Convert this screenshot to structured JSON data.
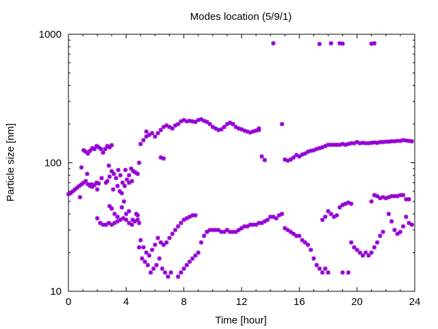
{
  "chart_data": {
    "type": "scatter",
    "title": "Modes location (5/9/1)",
    "xlabel": "Time [hour]",
    "ylabel": "Particle size [nm]",
    "xlim": [
      0,
      24
    ],
    "ylim": [
      10,
      1000
    ],
    "yscale": "log",
    "grid": false,
    "legend": "none",
    "marker": "asterisk",
    "color": "#9400d3",
    "xticks": [
      0,
      4,
      8,
      12,
      16,
      20,
      24
    ],
    "xtick_labels": [
      "0",
      "4",
      "8",
      "12",
      "16",
      "20",
      "24"
    ],
    "yticks": [
      10,
      100,
      1000
    ],
    "ytick_labels": [
      "10",
      "100",
      "1000"
    ],
    "series": [
      {
        "values": [
          [
            0.0,
            57
          ],
          [
            0.15,
            58
          ],
          [
            0.3,
            60
          ],
          [
            0.45,
            62
          ],
          [
            0.6,
            64
          ],
          [
            0.75,
            66
          ],
          [
            0.9,
            68
          ],
          [
            1.05,
            70
          ],
          [
            1.2,
            72
          ],
          [
            1.35,
            68
          ],
          [
            1.5,
            66
          ],
          [
            1.65,
            65
          ],
          [
            1.8,
            67
          ],
          [
            1.95,
            70
          ],
          [
            2.1,
            69
          ],
          [
            1.05,
            125
          ],
          [
            1.2,
            122
          ],
          [
            1.35,
            118
          ],
          [
            1.5,
            124
          ],
          [
            1.65,
            130
          ],
          [
            1.8,
            128
          ],
          [
            1.95,
            135
          ],
          [
            2.1,
            132
          ],
          [
            2.25,
            128
          ],
          [
            2.4,
            120
          ],
          [
            2.55,
            128
          ],
          [
            2.7,
            135
          ],
          [
            2.85,
            132
          ],
          [
            3.0,
            137
          ],
          [
            0.9,
            92
          ],
          [
            0.8,
            54
          ],
          [
            1.3,
            82
          ],
          [
            1.6,
            68
          ],
          [
            2.0,
            62
          ],
          [
            2.3,
            76
          ],
          [
            2.6,
            70
          ],
          [
            2.7,
            72
          ],
          [
            2.85,
            78
          ],
          [
            3.0,
            86
          ],
          [
            3.15,
            82
          ],
          [
            3.3,
            76
          ],
          [
            3.45,
            88
          ],
          [
            3.6,
            80
          ],
          [
            3.75,
            70
          ],
          [
            3.9,
            66
          ],
          [
            4.05,
            74
          ],
          [
            4.2,
            80
          ],
          [
            4.35,
            90
          ],
          [
            4.5,
            86
          ],
          [
            4.65,
            84
          ],
          [
            4.8,
            82
          ],
          [
            2.8,
            95
          ],
          [
            3.1,
            62
          ],
          [
            3.4,
            66
          ],
          [
            3.55,
            60
          ],
          [
            3.7,
            58
          ],
          [
            3.95,
            88
          ],
          [
            4.2,
            70
          ],
          [
            4.4,
            72
          ],
          [
            2.0,
            37
          ],
          [
            2.2,
            34
          ],
          [
            2.4,
            33
          ],
          [
            2.6,
            33
          ],
          [
            2.8,
            34
          ],
          [
            3.0,
            33
          ],
          [
            3.2,
            34
          ],
          [
            3.4,
            35
          ],
          [
            3.6,
            36
          ],
          [
            3.8,
            37
          ],
          [
            4.0,
            36
          ],
          [
            4.2,
            34
          ],
          [
            4.4,
            33
          ],
          [
            4.6,
            35
          ],
          [
            4.8,
            36
          ],
          [
            4.9,
            34
          ],
          [
            2.85,
            46
          ],
          [
            3.0,
            44
          ],
          [
            3.2,
            40
          ],
          [
            3.4,
            38
          ],
          [
            3.7,
            45
          ],
          [
            3.85,
            50
          ],
          [
            4.0,
            40
          ],
          [
            4.2,
            42
          ],
          [
            4.45,
            36
          ],
          [
            4.7,
            40
          ],
          [
            4.8,
            39
          ],
          [
            4.9,
            100
          ],
          [
            5.0,
            140
          ],
          [
            5.2,
            150
          ],
          [
            5.4,
            160
          ],
          [
            5.6,
            165
          ],
          [
            5.8,
            170
          ],
          [
            6.0,
            160
          ],
          [
            6.2,
            170
          ],
          [
            6.4,
            180
          ],
          [
            6.6,
            190
          ],
          [
            6.8,
            195
          ],
          [
            7.0,
            190
          ],
          [
            7.2,
            185
          ],
          [
            7.4,
            195
          ],
          [
            7.6,
            200
          ],
          [
            7.8,
            210
          ],
          [
            8.0,
            215
          ],
          [
            8.2,
            210
          ],
          [
            8.4,
            212
          ],
          [
            8.6,
            210
          ],
          [
            8.8,
            208
          ],
          [
            9.0,
            215
          ],
          [
            9.2,
            218
          ],
          [
            9.4,
            212
          ],
          [
            9.6,
            208
          ],
          [
            9.8,
            200
          ],
          [
            10.0,
            190
          ],
          [
            10.2,
            185
          ],
          [
            10.4,
            180
          ],
          [
            10.6,
            182
          ],
          [
            10.8,
            190
          ],
          [
            11.0,
            200
          ],
          [
            11.2,
            205
          ],
          [
            11.4,
            200
          ],
          [
            11.6,
            190
          ],
          [
            11.8,
            185
          ],
          [
            12.0,
            182
          ],
          [
            12.2,
            178
          ],
          [
            12.4,
            175
          ],
          [
            12.6,
            172
          ],
          [
            12.8,
            175
          ],
          [
            13.0,
            178
          ],
          [
            13.2,
            180
          ],
          [
            5.4,
            175
          ],
          [
            6.4,
            110
          ],
          [
            6.6,
            108
          ],
          [
            11.4,
            200
          ],
          [
            13.2,
            185
          ],
          [
            13.4,
            112
          ],
          [
            13.6,
            105
          ],
          [
            5.0,
            25
          ],
          [
            5.2,
            22
          ],
          [
            5.4,
            20
          ],
          [
            5.6,
            19
          ],
          [
            5.8,
            21
          ],
          [
            6.0,
            23
          ],
          [
            6.2,
            26
          ],
          [
            6.4,
            24
          ],
          [
            6.6,
            23
          ],
          [
            6.8,
            24
          ],
          [
            7.0,
            26
          ],
          [
            7.2,
            28
          ],
          [
            7.4,
            30
          ],
          [
            7.6,
            32
          ],
          [
            7.8,
            34
          ],
          [
            8.0,
            36
          ],
          [
            8.2,
            37
          ],
          [
            8.4,
            38
          ],
          [
            8.6,
            39
          ],
          [
            8.8,
            39
          ],
          [
            4.9,
            22
          ],
          [
            5.1,
            18
          ],
          [
            5.3,
            17
          ],
          [
            5.5,
            16
          ],
          [
            5.7,
            14
          ],
          [
            5.9,
            15
          ],
          [
            6.1,
            16
          ],
          [
            6.3,
            18
          ],
          [
            6.5,
            15
          ],
          [
            6.7,
            14
          ],
          [
            6.9,
            13
          ],
          [
            7.1,
            14
          ],
          [
            7.6,
            13
          ],
          [
            7.8,
            14
          ],
          [
            8.0,
            15
          ],
          [
            8.2,
            16
          ],
          [
            8.4,
            17
          ],
          [
            8.6,
            18
          ],
          [
            8.8,
            19
          ],
          [
            9.0,
            20
          ],
          [
            9.2,
            24
          ],
          [
            9.4,
            27
          ],
          [
            9.6,
            29
          ],
          [
            9.6,
            29
          ],
          [
            9.8,
            30
          ],
          [
            10.0,
            30
          ],
          [
            10.2,
            30
          ],
          [
            10.4,
            30
          ],
          [
            10.6,
            29
          ],
          [
            10.8,
            29
          ],
          [
            11.0,
            30
          ],
          [
            11.2,
            29
          ],
          [
            11.4,
            29
          ],
          [
            11.6,
            29
          ],
          [
            11.8,
            30
          ],
          [
            12.0,
            31
          ],
          [
            12.2,
            32
          ],
          [
            12.4,
            32
          ],
          [
            12.6,
            33
          ],
          [
            12.8,
            33
          ],
          [
            13.0,
            33
          ],
          [
            13.2,
            34
          ],
          [
            13.4,
            34
          ],
          [
            13.6,
            35
          ],
          [
            13.8,
            36
          ],
          [
            14.0,
            38
          ],
          [
            14.2,
            38
          ],
          [
            14.4,
            37
          ],
          [
            14.6,
            39
          ],
          [
            14.8,
            40
          ],
          [
            15.0,
            31
          ],
          [
            15.2,
            30
          ],
          [
            15.4,
            29
          ],
          [
            15.6,
            28
          ],
          [
            15.8,
            27
          ],
          [
            16.0,
            27
          ],
          [
            16.2,
            25
          ],
          [
            16.4,
            24
          ],
          [
            16.6,
            23
          ],
          [
            16.8,
            21
          ],
          [
            17.0,
            18
          ],
          [
            17.2,
            16
          ],
          [
            17.4,
            15
          ],
          [
            17.6,
            14
          ],
          [
            17.8,
            15
          ],
          [
            18.0,
            14
          ],
          [
            17.6,
            36
          ],
          [
            17.8,
            38
          ],
          [
            18.0,
            42
          ],
          [
            18.2,
            40
          ],
          [
            18.4,
            38
          ],
          [
            18.6,
            39
          ],
          [
            18.8,
            45
          ],
          [
            19.0,
            47
          ],
          [
            19.2,
            48
          ],
          [
            19.4,
            49
          ],
          [
            19.6,
            48
          ],
          [
            19.0,
            14
          ],
          [
            19.4,
            14
          ],
          [
            19.6,
            24
          ],
          [
            19.8,
            22
          ],
          [
            20.0,
            21
          ],
          [
            20.2,
            20
          ],
          [
            20.4,
            19
          ],
          [
            20.6,
            20
          ],
          [
            20.8,
            19
          ],
          [
            21.0,
            20
          ],
          [
            21.2,
            22
          ],
          [
            21.4,
            24
          ],
          [
            21.6,
            27
          ],
          [
            21.8,
            29
          ],
          [
            21.0,
            50
          ],
          [
            21.2,
            56
          ],
          [
            21.4,
            55
          ],
          [
            21.6,
            53
          ],
          [
            21.8,
            54
          ],
          [
            22.0,
            53
          ],
          [
            22.2,
            54
          ],
          [
            22.4,
            55
          ],
          [
            22.6,
            55
          ],
          [
            22.8,
            55
          ],
          [
            23.0,
            56
          ],
          [
            23.2,
            56
          ],
          [
            23.4,
            52
          ],
          [
            23.6,
            52
          ],
          [
            22.2,
            40
          ],
          [
            22.4,
            35
          ],
          [
            22.6,
            30
          ],
          [
            22.8,
            28
          ],
          [
            23.0,
            29
          ],
          [
            23.2,
            32
          ],
          [
            23.4,
            38
          ],
          [
            23.6,
            34
          ],
          [
            23.8,
            33
          ],
          [
            14.8,
            200
          ],
          [
            15.0,
            106
          ],
          [
            15.2,
            104
          ],
          [
            15.4,
            106
          ],
          [
            15.6,
            110
          ],
          [
            15.8,
            115
          ],
          [
            16.0,
            112
          ],
          [
            16.2,
            116
          ],
          [
            16.4,
            118
          ],
          [
            16.6,
            122
          ],
          [
            16.8,
            124
          ],
          [
            17.0,
            125
          ],
          [
            17.2,
            128
          ],
          [
            17.4,
            130
          ],
          [
            17.6,
            132
          ],
          [
            17.8,
            135
          ],
          [
            18.0,
            138
          ],
          [
            18.2,
            138
          ],
          [
            18.4,
            138
          ],
          [
            18.6,
            138
          ],
          [
            18.8,
            138
          ],
          [
            19.0,
            140
          ],
          [
            19.2,
            138
          ],
          [
            19.4,
            140
          ],
          [
            19.6,
            142
          ],
          [
            19.8,
            142
          ],
          [
            20.0,
            145
          ],
          [
            20.2,
            142
          ],
          [
            20.4,
            143
          ],
          [
            20.6,
            142
          ],
          [
            20.8,
            142
          ],
          [
            21.0,
            143
          ],
          [
            21.2,
            144
          ],
          [
            21.4,
            143
          ],
          [
            21.6,
            145
          ],
          [
            21.8,
            145
          ],
          [
            22.0,
            146
          ],
          [
            22.2,
            146
          ],
          [
            22.4,
            147
          ],
          [
            22.6,
            147
          ],
          [
            22.8,
            148
          ],
          [
            23.0,
            148
          ],
          [
            23.2,
            150
          ],
          [
            23.4,
            149
          ],
          [
            23.6,
            148
          ],
          [
            23.8,
            147
          ],
          [
            14.2,
            850
          ],
          [
            17.4,
            840
          ],
          [
            18.2,
            850
          ],
          [
            18.8,
            850
          ],
          [
            19.0,
            845
          ],
          [
            21.0,
            845
          ],
          [
            21.2,
            850
          ]
        ]
      }
    ]
  }
}
